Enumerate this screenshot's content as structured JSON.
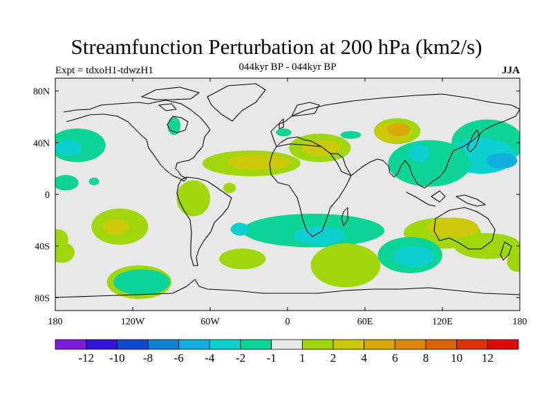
{
  "chart_data": {
    "type": "contour-map",
    "title": "Streamfunction Perturbation at 200 hPa (km2/s)",
    "left_label": "Expt = tdxoH1-tdwzH1",
    "center_label": "044kyr BP - 044kyr BP",
    "right_label": "JJA",
    "xlim": [
      -180,
      180
    ],
    "ylim": [
      -90,
      90
    ],
    "x_ticks": [
      {
        "value": -180,
        "label": "180"
      },
      {
        "value": -120,
        "label": "120W"
      },
      {
        "value": -60,
        "label": "60W"
      },
      {
        "value": 0,
        "label": "0"
      },
      {
        "value": 60,
        "label": "60E"
      },
      {
        "value": 120,
        "label": "120E"
      },
      {
        "value": 180,
        "label": "180"
      }
    ],
    "y_ticks": [
      {
        "value": 80,
        "label": "80N"
      },
      {
        "value": 40,
        "label": "40N"
      },
      {
        "value": 0,
        "label": "0"
      },
      {
        "value": -40,
        "label": "40S"
      },
      {
        "value": -80,
        "label": "80S"
      }
    ],
    "colorbar": {
      "colors": [
        "#7e1ce0",
        "#3612d6",
        "#1248d0",
        "#0e82d4",
        "#12aede",
        "#0ccfd2",
        "#0cd496",
        "#e8e8e8",
        "#a0d60c",
        "#ccc80a",
        "#d8a80a",
        "#dc8808",
        "#dc6006",
        "#dc3408",
        "#dc0c0c"
      ],
      "labels": [
        "-12",
        "-10",
        "-8",
        "-6",
        "-4",
        "-2",
        "-1",
        "1",
        "2",
        "4",
        "6",
        "8",
        "10",
        "12"
      ]
    },
    "fields": [
      {
        "level": -1,
        "lon": -163,
        "lat": 38,
        "rx": 22,
        "ry": 13
      },
      {
        "level": -2,
        "lon": -170,
        "lat": 36,
        "rx": 10,
        "ry": 6
      },
      {
        "level": -1,
        "lon": -172,
        "lat": 9,
        "rx": 10,
        "ry": 6
      },
      {
        "level": -1,
        "lon": 155,
        "lat": 40,
        "rx": 28,
        "ry": 18
      },
      {
        "level": -2,
        "lon": 150,
        "lat": 30,
        "rx": 27,
        "ry": 14
      },
      {
        "level": -4,
        "lon": 166,
        "lat": 26,
        "rx": 12,
        "ry": 6
      },
      {
        "level": -1,
        "lon": 110,
        "lat": 24,
        "rx": 32,
        "ry": 18
      },
      {
        "level": -2,
        "lon": 102,
        "lat": 32,
        "rx": 8,
        "ry": 7
      },
      {
        "level": 1,
        "lon": 85,
        "lat": 49,
        "rx": 18,
        "ry": 10
      },
      {
        "level": 2,
        "lon": 82,
        "lat": 48,
        "rx": 14,
        "ry": 8
      },
      {
        "level": 4,
        "lon": 86,
        "lat": 50,
        "rx": 9,
        "ry": 5
      },
      {
        "level": 1,
        "lon": -28,
        "lat": 24,
        "rx": 38,
        "ry": 10
      },
      {
        "level": 2,
        "lon": -22,
        "lat": 25,
        "rx": 25,
        "ry": 6
      },
      {
        "level": 1,
        "lon": 25,
        "lat": 36,
        "rx": 24,
        "ry": 11
      },
      {
        "level": 2,
        "lon": 26,
        "lat": 36,
        "rx": 15,
        "ry": 6
      },
      {
        "level": -1,
        "lon": 49,
        "lat": 46,
        "rx": 8,
        "ry": 3
      },
      {
        "level": -1,
        "lon": -3,
        "lat": 48,
        "rx": 6,
        "ry": 3
      },
      {
        "level": 1,
        "lon": -45,
        "lat": 5,
        "rx": 5,
        "ry": 4
      },
      {
        "level": 1,
        "lon": -73,
        "lat": -3,
        "rx": 13,
        "ry": 14
      },
      {
        "level": -1,
        "lon": -150,
        "lat": 45,
        "rx": 4,
        "ry": 3
      },
      {
        "level": -1,
        "lon": -88,
        "lat": 53,
        "rx": 5,
        "ry": 7
      },
      {
        "level": -1,
        "lon": -150,
        "lat": 10,
        "rx": 4,
        "ry": 3
      },
      {
        "level": 1,
        "lon": -130,
        "lat": -25,
        "rx": 22,
        "ry": 14
      },
      {
        "level": 2,
        "lon": -133,
        "lat": -25,
        "rx": 10,
        "ry": 6
      },
      {
        "level": 1,
        "lon": -178,
        "lat": -35,
        "rx": 8,
        "ry": 8
      },
      {
        "level": 1,
        "lon": -35,
        "lat": -50,
        "rx": 18,
        "ry": 8
      },
      {
        "level": -1,
        "lon": 20,
        "lat": -28,
        "rx": 55,
        "ry": 13
      },
      {
        "level": -2,
        "lon": 25,
        "lat": -32,
        "rx": 20,
        "ry": 7
      },
      {
        "level": -2,
        "lon": -37,
        "lat": -27,
        "rx": 7,
        "ry": 5
      },
      {
        "level": 1,
        "lon": 45,
        "lat": -55,
        "rx": 27,
        "ry": 17
      },
      {
        "level": 1,
        "lon": -115,
        "lat": -68,
        "rx": 25,
        "ry": 13
      },
      {
        "level": -1,
        "lon": -113,
        "lat": -68,
        "rx": 22,
        "ry": 10
      },
      {
        "level": 1,
        "lon": 120,
        "lat": -30,
        "rx": 30,
        "ry": 12
      },
      {
        "level": 2,
        "lon": 128,
        "lat": -26,
        "rx": 20,
        "ry": 8
      },
      {
        "level": 1,
        "lon": 155,
        "lat": -40,
        "rx": 26,
        "ry": 10
      },
      {
        "level": -1,
        "lon": 95,
        "lat": -47,
        "rx": 25,
        "ry": 14
      },
      {
        "level": -2,
        "lon": 98,
        "lat": -48,
        "rx": 16,
        "ry": 8
      },
      {
        "level": 1,
        "lon": -175,
        "lat": -45,
        "rx": 10,
        "ry": 8
      },
      {
        "level": 1,
        "lon": 178,
        "lat": -52,
        "rx": 8,
        "ry": 8
      }
    ]
  }
}
